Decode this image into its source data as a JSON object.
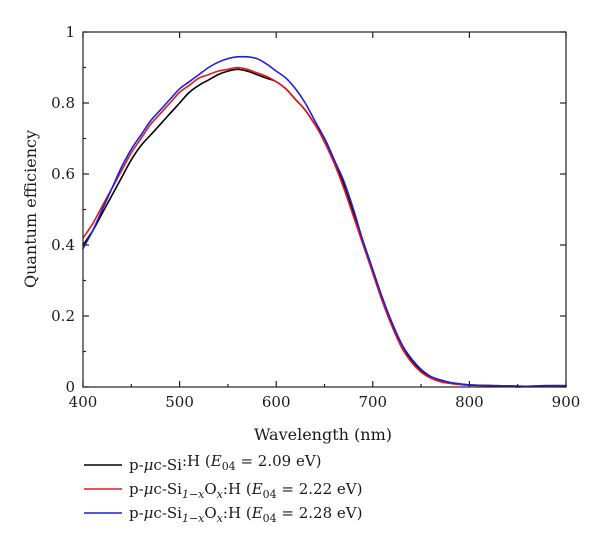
{
  "chart_data": {
    "type": "line",
    "xlabel": "Wavelength (nm)",
    "ylabel": "Quantum efficiency",
    "xlim": [
      400,
      900
    ],
    "ylim": [
      0,
      1
    ],
    "xticks": [
      400,
      500,
      600,
      700,
      800,
      900
    ],
    "yticks": [
      0,
      0.2,
      0.4,
      0.6,
      0.8,
      1
    ],
    "ytick_labels": [
      "0",
      "0.2",
      "0.4",
      "0.6",
      "0.8",
      "1"
    ],
    "grid": false,
    "legend_position": "bottom",
    "series": [
      {
        "label_parts": [
          "p-",
          "μ",
          "c-Si",
          "",
          ":H (",
          "E",
          "04",
          " = 2.09 eV)"
        ],
        "color": "#000000",
        "x": [
          400,
          410,
          420,
          430,
          440,
          450,
          460,
          470,
          480,
          490,
          500,
          510,
          520,
          530,
          540,
          550,
          560,
          570,
          580,
          590,
          600,
          610,
          620,
          630,
          640,
          650,
          660,
          670,
          680,
          690,
          700,
          710,
          720,
          730,
          740,
          750,
          760,
          770,
          780,
          790,
          800,
          820,
          840,
          860,
          880,
          900
        ],
        "y": [
          0.4,
          0.44,
          0.49,
          0.54,
          0.59,
          0.64,
          0.68,
          0.71,
          0.74,
          0.77,
          0.8,
          0.83,
          0.85,
          0.865,
          0.88,
          0.89,
          0.895,
          0.89,
          0.88,
          0.87,
          0.86,
          0.84,
          0.81,
          0.78,
          0.74,
          0.7,
          0.64,
          0.57,
          0.49,
          0.41,
          0.33,
          0.25,
          0.18,
          0.12,
          0.075,
          0.045,
          0.027,
          0.017,
          0.011,
          0.008,
          0.006,
          0.004,
          0.003,
          0.002,
          0.002,
          0.002
        ]
      },
      {
        "label_parts": [
          "p-",
          "μ",
          "c-Si",
          "1−x",
          "O",
          "x",
          ":H (",
          "E",
          "04",
          " = 2.22 eV)"
        ],
        "color": "#e31a1c",
        "x": [
          400,
          410,
          420,
          430,
          440,
          450,
          460,
          470,
          480,
          490,
          500,
          510,
          520,
          530,
          540,
          550,
          560,
          570,
          580,
          590,
          600,
          610,
          620,
          630,
          640,
          650,
          660,
          670,
          680,
          690,
          700,
          710,
          720,
          730,
          740,
          750,
          760,
          770,
          780,
          790,
          800,
          820,
          840,
          850,
          860,
          880,
          900
        ],
        "y": [
          0.42,
          0.46,
          0.51,
          0.56,
          0.61,
          0.66,
          0.7,
          0.74,
          0.77,
          0.8,
          0.83,
          0.85,
          0.87,
          0.88,
          0.89,
          0.895,
          0.9,
          0.895,
          0.885,
          0.875,
          0.86,
          0.84,
          0.81,
          0.78,
          0.74,
          0.69,
          0.63,
          0.56,
          0.48,
          0.4,
          0.32,
          0.24,
          0.17,
          0.11,
          0.07,
          0.042,
          0.025,
          0.015,
          0.01,
          0.007,
          0.005,
          0.004,
          0.003,
          0.0,
          0.002,
          0.003,
          0.003
        ]
      },
      {
        "label_parts": [
          "p-",
          "μ",
          "c-Si",
          "1−x",
          "O",
          "x",
          ":H (",
          "E",
          "04",
          " = 2.28 eV)"
        ],
        "color": "#1f1fdd",
        "x": [
          400,
          410,
          420,
          430,
          440,
          450,
          460,
          470,
          480,
          490,
          500,
          510,
          520,
          530,
          540,
          550,
          560,
          570,
          580,
          590,
          600,
          610,
          620,
          630,
          640,
          650,
          660,
          670,
          680,
          690,
          700,
          710,
          720,
          730,
          740,
          750,
          760,
          770,
          780,
          790,
          800,
          820,
          840,
          860,
          880,
          900
        ],
        "y": [
          0.39,
          0.44,
          0.5,
          0.56,
          0.62,
          0.67,
          0.71,
          0.75,
          0.78,
          0.81,
          0.84,
          0.86,
          0.88,
          0.9,
          0.915,
          0.925,
          0.93,
          0.93,
          0.925,
          0.91,
          0.89,
          0.87,
          0.84,
          0.8,
          0.75,
          0.7,
          0.64,
          0.58,
          0.5,
          0.41,
          0.33,
          0.25,
          0.18,
          0.12,
          0.08,
          0.05,
          0.03,
          0.02,
          0.013,
          0.009,
          0.006,
          0.004,
          0.003,
          0.002,
          0.004,
          0.004
        ]
      }
    ]
  }
}
